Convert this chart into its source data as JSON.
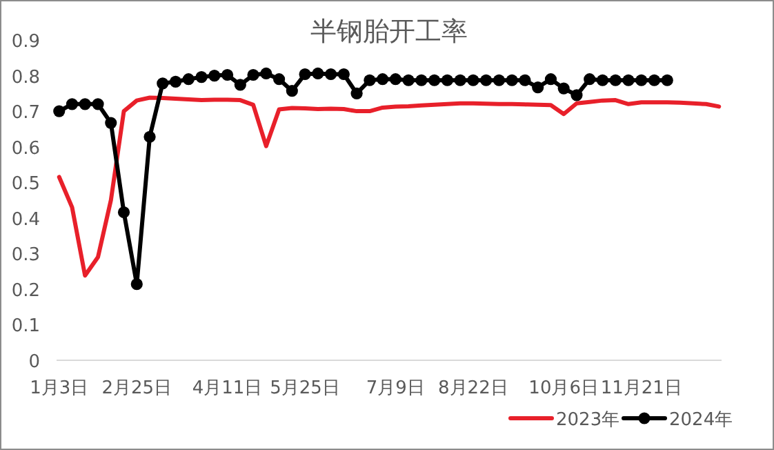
{
  "chart_data": {
    "type": "line",
    "title": "半钢胎开工率",
    "categories": [
      "1月3日",
      null,
      null,
      null,
      null,
      null,
      "2月25日",
      null,
      null,
      null,
      null,
      null,
      null,
      "4月11日",
      null,
      null,
      null,
      null,
      null,
      "5月25日",
      null,
      null,
      null,
      null,
      null,
      null,
      "7月9日",
      null,
      null,
      null,
      null,
      null,
      "8月22日",
      null,
      null,
      null,
      null,
      null,
      null,
      "10月6日",
      null,
      null,
      null,
      null,
      null,
      "11月21日",
      null,
      null,
      null,
      null,
      null,
      null
    ],
    "ylim": [
      0,
      0.9
    ],
    "yticks": [
      0,
      0.1,
      0.2,
      0.3,
      0.4,
      0.5,
      0.6,
      0.7,
      0.8,
      0.9
    ],
    "grid": false,
    "legend": "bottom right",
    "series": [
      {
        "name": "2023年",
        "color": "#e8202a",
        "marker": "none",
        "values": [
          0.515,
          0.43,
          0.238,
          0.29,
          0.45,
          0.7,
          0.73,
          0.738,
          0.737,
          0.735,
          0.733,
          0.731,
          0.732,
          0.732,
          0.731,
          0.718,
          0.602,
          0.705,
          0.709,
          0.708,
          0.706,
          0.707,
          0.706,
          0.7,
          0.7,
          0.71,
          0.713,
          0.714,
          0.716,
          0.718,
          0.72,
          0.722,
          0.722,
          0.721,
          0.72,
          0.72,
          0.719,
          0.718,
          0.717,
          0.692,
          0.722,
          0.726,
          0.73,
          0.731,
          0.72,
          0.725,
          0.725,
          0.725,
          0.724,
          0.722,
          0.72,
          0.713
        ]
      },
      {
        "name": "2024年",
        "color": "#000000",
        "marker": "circle",
        "values": [
          0.7,
          0.72,
          0.72,
          0.72,
          0.667,
          0.416,
          0.214,
          0.628,
          0.778,
          0.783,
          0.79,
          0.796,
          0.8,
          0.802,
          0.774,
          0.802,
          0.806,
          0.79,
          0.757,
          0.804,
          0.806,
          0.804,
          0.804,
          0.75,
          0.787,
          0.79,
          0.79,
          0.787,
          0.787,
          0.787,
          0.787,
          0.787,
          0.787,
          0.787,
          0.787,
          0.787,
          0.787,
          0.767,
          0.79,
          0.764,
          0.745,
          0.79,
          0.787,
          0.787,
          0.787,
          0.787,
          0.787,
          0.787,
          null,
          null,
          null,
          null
        ]
      }
    ]
  }
}
